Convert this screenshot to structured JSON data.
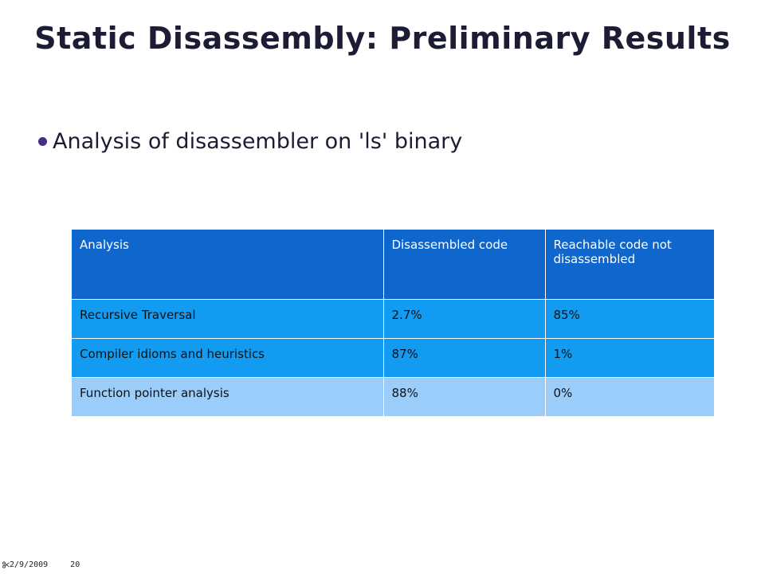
{
  "slide": {
    "title": "Static Disassembly: Preliminary Results",
    "bullet": "Analysis of disassembler on 'ls' binary"
  },
  "table": {
    "headers": [
      "Analysis",
      "Disassembled code",
      "Reachable code not disassembled"
    ],
    "rows": [
      [
        "Recursive Traversal",
        "2.7%",
        "85%"
      ],
      [
        "Compiler idioms and heuristics",
        "87%",
        "1%"
      ],
      [
        "Function pointer analysis",
        "88%",
        "0%"
      ]
    ]
  },
  "footer": {
    "date": "2/9/2009",
    "page_number": "20",
    "date_icon": "scissors-icon"
  },
  "colors": {
    "header_fill": "#0f66cc",
    "row_fill_dark": "#129cf1",
    "row_fill_light": "#9acdfa",
    "bullet": "#4a2a88"
  }
}
